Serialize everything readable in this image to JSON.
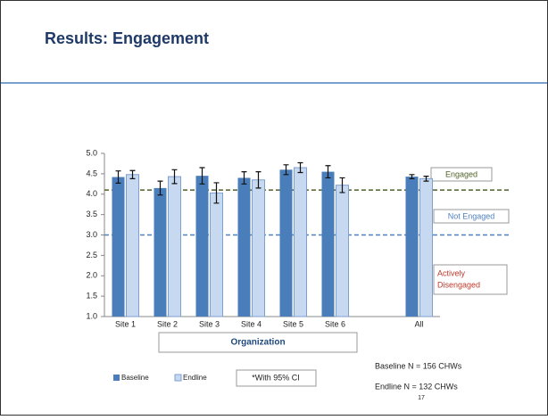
{
  "slide": {
    "title": "Results: Engagement",
    "page_number": "17"
  },
  "chart_data": {
    "type": "bar",
    "categories": [
      "Site 1",
      "Site 2",
      "Site 3",
      "Site 4",
      "Site 5",
      "Site 6",
      null,
      "All"
    ],
    "series": [
      {
        "name": "Baseline",
        "color": "#4a7ebb",
        "values": [
          4.42,
          4.15,
          4.45,
          4.4,
          4.6,
          4.55,
          null,
          4.43
        ],
        "errors": [
          0.15,
          0.17,
          0.2,
          0.15,
          0.12,
          0.15,
          null,
          0.05
        ]
      },
      {
        "name": "Endline",
        "color": "#c6d9f1",
        "values": [
          4.48,
          4.43,
          4.03,
          4.35,
          4.65,
          4.22,
          null,
          4.38
        ],
        "errors": [
          0.1,
          0.17,
          0.25,
          0.2,
          0.12,
          0.18,
          null,
          0.06
        ]
      }
    ],
    "ylim": [
      1,
      5
    ],
    "yticks": [
      {
        "value": 1,
        "label": "1.0"
      },
      1.5,
      {
        "value": 2,
        "label": "2.0"
      },
      2.5,
      {
        "value": 3,
        "label": "3.0"
      },
      3.5,
      {
        "value": 4,
        "label": "4.0"
      },
      4.5,
      {
        "value": 5,
        "label": "5.0"
      }
    ],
    "x_label": "Organization",
    "reference_lines": [
      {
        "value": 4.1,
        "label": "Engaged",
        "color": "#4f6228"
      },
      {
        "value": 3.0,
        "label": "Not Engaged",
        "color": "#4f81bd"
      }
    ],
    "region_label": [
      "Actively",
      "Disengaged"
    ],
    "note": "*With 95% CI",
    "sample_sizes": [
      "Baseline N = 156 CHWs",
      "Endline N = 132 CHWs"
    ]
  }
}
